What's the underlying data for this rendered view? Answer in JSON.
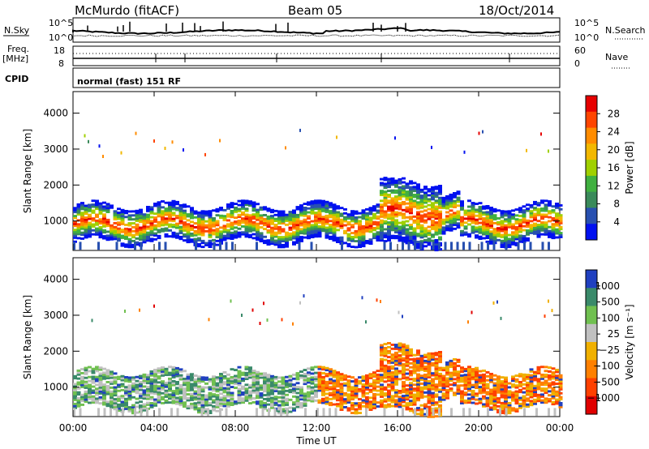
{
  "header": {
    "station": "McMurdo (fitACF)",
    "beam": "Beam 05",
    "date": "18/Oct/2014"
  },
  "panels": {
    "nsky_label": "N.Sky",
    "nsky_ticks": [
      "10^5",
      "10^0"
    ],
    "nsky_right_ticks": [
      "10^5",
      "10^0"
    ],
    "nsearch_label": "N.Search",
    "freq_label": "Freq.",
    "freq_unit": "[MHz]",
    "freq_ticks": [
      "18",
      "8"
    ],
    "nave_ticks": [
      "60",
      "0"
    ],
    "nave_label": "Nave",
    "cpid_label": "CPID",
    "cpid_value": "normal (fast) 151 RF"
  },
  "chart_data": [
    {
      "type": "heatmap",
      "name": "power",
      "ylabel": "Slant Range [km]",
      "yticks": [
        1000,
        2000,
        3000,
        4000
      ],
      "ylim": [
        180,
        4600
      ],
      "xlim": [
        0,
        24
      ],
      "xticks": [
        "00:00",
        "04:00",
        "08:00",
        "12:00",
        "16:00",
        "20:00",
        "00:00"
      ],
      "colorbar": {
        "label": "Power [dB]",
        "ticks": [
          "28",
          "24",
          "20",
          "16",
          "12",
          "8",
          "4"
        ],
        "colors": [
          "#e60000",
          "#ff4500",
          "#ff8c00",
          "#f2b800",
          "#a0d000",
          "#40b040",
          "#3a8a5a",
          "#2850b0",
          "#0010f0"
        ]
      }
    },
    {
      "type": "heatmap",
      "name": "velocity",
      "ylabel": "Slant Range [km]",
      "yticks": [
        1000,
        2000,
        3000,
        4000
      ],
      "ylim": [
        180,
        4600
      ],
      "xlim": [
        0,
        24
      ],
      "xticks": [
        "00:00",
        "04:00",
        "08:00",
        "12:00",
        "16:00",
        "20:00",
        "00:00"
      ],
      "xlabel": "Time UT",
      "colorbar": {
        "label": "Velocity [m s⁻¹]",
        "ticks": [
          "1000",
          "500",
          "100",
          "25",
          "−25",
          "−100",
          "−500",
          "−1000"
        ],
        "colors": [
          "#2040c0",
          "#3a8a6a",
          "#70c050",
          "#c0c0c0",
          "#f0b000",
          "#ff8000",
          "#ff4000",
          "#e00000"
        ]
      }
    }
  ]
}
